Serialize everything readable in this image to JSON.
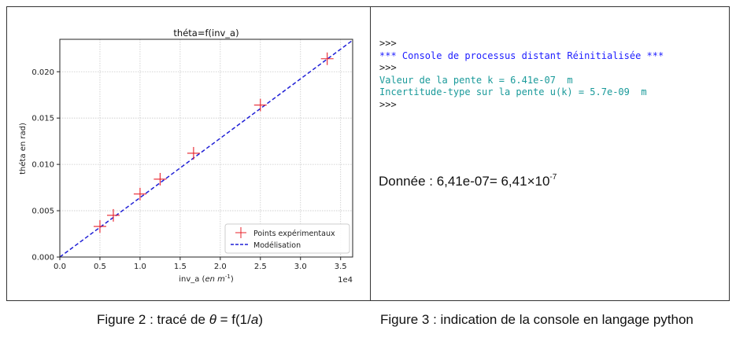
{
  "chart_data": {
    "type": "scatter",
    "title": "théta=f(inv_a)",
    "xlabel_main": "inv_a",
    "xlabel_unit": "en m",
    "xlabel_exp": "-1",
    "xlabel_close": ")",
    "ylabel": "théta   en rad)",
    "x_offset_label": "1e4",
    "xlim": [
      0,
      3.65
    ],
    "ylim": [
      0,
      0.0235
    ],
    "grid": true,
    "legend_position": "lower-right",
    "x_ticks": [
      "0.0",
      "0.5",
      "1.0",
      "1.5",
      "2.0",
      "2.5",
      "3.0",
      "3.5"
    ],
    "y_ticks": [
      "0.000",
      "0.005",
      "0.010",
      "0.015",
      "0.020"
    ],
    "series": [
      {
        "name": "Points expérimentaux",
        "kind": "points",
        "color": "#e8202a",
        "x": [
          0.5,
          0.667,
          1.0,
          1.25,
          1.667,
          2.5,
          3.333
        ],
        "y": [
          0.0033,
          0.0045,
          0.0068,
          0.0084,
          0.0112,
          0.0164,
          0.0214
        ]
      },
      {
        "name": "Modélisation",
        "kind": "line",
        "color": "#1f1fd6",
        "slope": 0.00641,
        "intercept": 0
      }
    ]
  },
  "console": {
    "lines": [
      {
        "text": ">>>",
        "color": "prompt"
      },
      {
        "text": "*** Console de processus distant Réinitialisée ***",
        "color": "blue"
      },
      {
        "text": ">>>",
        "color": "prompt"
      },
      {
        "text": "Valeur de la pente k = 6.41e-07  m",
        "color": "teal"
      },
      {
        "text": "Incertitude-type sur la pente u(k) = 5.7e-09  m",
        "color": "teal"
      },
      {
        "text": ">>>",
        "color": "prompt"
      }
    ]
  },
  "donnee": {
    "text": "Donnée : 6,41e-07= 6,41×10",
    "exponent": "-7"
  },
  "captions": {
    "fig2_prefix": "Figure 2 : tracé de ",
    "fig2_theta": "θ",
    "fig2_mid": " = f(1/",
    "fig2_a": "a",
    "fig2_suffix": ")",
    "fig3": "Figure 3 : indication de la console en langage python"
  }
}
